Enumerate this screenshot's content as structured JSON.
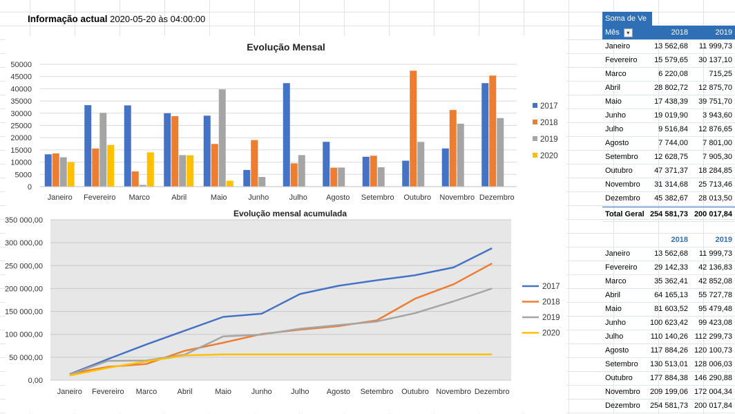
{
  "header": {
    "label": "Informação actual",
    "timestamp": "2020-05-20 às 04:00:00"
  },
  "colors": {
    "2017": "#4472c4",
    "2018": "#ed7d31",
    "2019": "#a5a5a5",
    "2020": "#ffc000"
  },
  "chart_data": [
    {
      "type": "bar",
      "title": "Evolução Mensal",
      "categories": [
        "Janeiro",
        "Fevereiro",
        "Marco",
        "Abril",
        "Maio",
        "Junho",
        "Julho",
        "Agosto",
        "Setembro",
        "Outubro",
        "Novembro",
        "Dezembro"
      ],
      "ylim": [
        0,
        50000
      ],
      "yticks": [
        "0",
        "5000",
        "10000",
        "15000",
        "20000",
        "25000",
        "30000",
        "35000",
        "40000",
        "45000",
        "50000"
      ],
      "legend_position": "right",
      "series": [
        {
          "name": "2017",
          "values": [
            13200,
            33300,
            33200,
            30000,
            29000,
            6800,
            42300,
            18300,
            12200,
            10600,
            15600,
            42300
          ]
        },
        {
          "name": "2018",
          "values": [
            13562.68,
            15579.65,
            6220.08,
            28802.72,
            17438.39,
            19019.9,
            9516.84,
            7744.0,
            12628.75,
            47371.37,
            31314.68,
            45382.67
          ]
        },
        {
          "name": "2019",
          "values": [
            11999.73,
            30137.1,
            715.25,
            12875.7,
            39751.7,
            3943.6,
            12876.65,
            7801.0,
            7905.3,
            18284.85,
            25713.46,
            28013.5
          ]
        },
        {
          "name": "2020",
          "values": [
            10000,
            17000,
            14000,
            12800,
            2400,
            0,
            0,
            0,
            0,
            0,
            0,
            0
          ]
        }
      ]
    },
    {
      "type": "line",
      "title": "Evolução mensal acumulada",
      "categories": [
        "Janeiro",
        "Fevereiro",
        "Marco",
        "Abril",
        "Maio",
        "Junho",
        "Julho",
        "Agosto",
        "Setembro",
        "Outubro",
        "Novembro",
        "Dezembro"
      ],
      "ylim": [
        0,
        350000
      ],
      "yticks": [
        "0,00",
        "50 000,00",
        "100 000,00",
        "150 000,00",
        "200 000,00",
        "250 000,00",
        "300 000,00",
        "350 000,00"
      ],
      "legend_position": "right",
      "series": [
        {
          "name": "2017",
          "values": [
            13000,
            46000,
            78000,
            108000,
            138000,
            145000,
            188000,
            206000,
            218000,
            229000,
            246000,
            288000
          ]
        },
        {
          "name": "2018",
          "values": [
            13562.68,
            29142.33,
            35362.41,
            64165.13,
            81603.52,
            100623.42,
            110140.26,
            117884.26,
            130513.01,
            177884.38,
            209199.06,
            254581.73
          ]
        },
        {
          "name": "2019",
          "values": [
            11999.73,
            42136.83,
            42852.08,
            55727.78,
            95479.48,
            99423.08,
            112299.73,
            120100.73,
            128006.03,
            146290.88,
            172004.34,
            200017.84
          ]
        },
        {
          "name": "2020",
          "values": [
            10000,
            27000,
            41000,
            53800,
            56200,
            56200,
            56200,
            56200,
            56200,
            56200,
            56200,
            56200
          ]
        }
      ]
    }
  ],
  "pivot1": {
    "title": "Soma de Ve",
    "col_header": "Mês",
    "cols": [
      "2018",
      "2019"
    ],
    "rows": [
      [
        "Janeiro",
        "13 562,68",
        "11 999,73"
      ],
      [
        "Fevereiro",
        "15 579,65",
        "30 137,10"
      ],
      [
        "Marco",
        "6 220,08",
        "715,25"
      ],
      [
        "Abril",
        "28 802,72",
        "12 875,70"
      ],
      [
        "Maio",
        "17 438,39",
        "39 751,70"
      ],
      [
        "Junho",
        "19 019,90",
        "3 943,60"
      ],
      [
        "Julho",
        "9 516,84",
        "12 876,65"
      ],
      [
        "Agosto",
        "7 744,00",
        "7 801,00"
      ],
      [
        "Setembro",
        "12 628,75",
        "7 905,30"
      ],
      [
        "Outubro",
        "47 371,37",
        "18 284,85"
      ],
      [
        "Novembro",
        "31 314,68",
        "25 713,46"
      ],
      [
        "Dezembro",
        "45 382,67",
        "28 013,50"
      ]
    ],
    "total": [
      "Total Geral",
      "254 581,73",
      "200 017,84"
    ]
  },
  "pivot2": {
    "cols": [
      "2018",
      "2019"
    ],
    "rows": [
      [
        "Janeiro",
        "13 562,68",
        "11 999,73"
      ],
      [
        "Fevereiro",
        "29 142,33",
        "42 136,83"
      ],
      [
        "Marco",
        "35 362,41",
        "42 852,08"
      ],
      [
        "Abril",
        "64 165,13",
        "55 727,78"
      ],
      [
        "Maio",
        "81 603,52",
        "95 479,48"
      ],
      [
        "Junho",
        "100 623,42",
        "99 423,08"
      ],
      [
        "Julho",
        "110 140,26",
        "112 299,73"
      ],
      [
        "Agosto",
        "117 884,26",
        "120 100,73"
      ],
      [
        "Setembro",
        "130 513,01",
        "128 006,03"
      ],
      [
        "Outubro",
        "177 884,38",
        "146 290,88"
      ],
      [
        "Novembro",
        "209 199,06",
        "172 004,34"
      ],
      [
        "Dezembro",
        "254 581,73",
        "200 017,84"
      ]
    ]
  }
}
